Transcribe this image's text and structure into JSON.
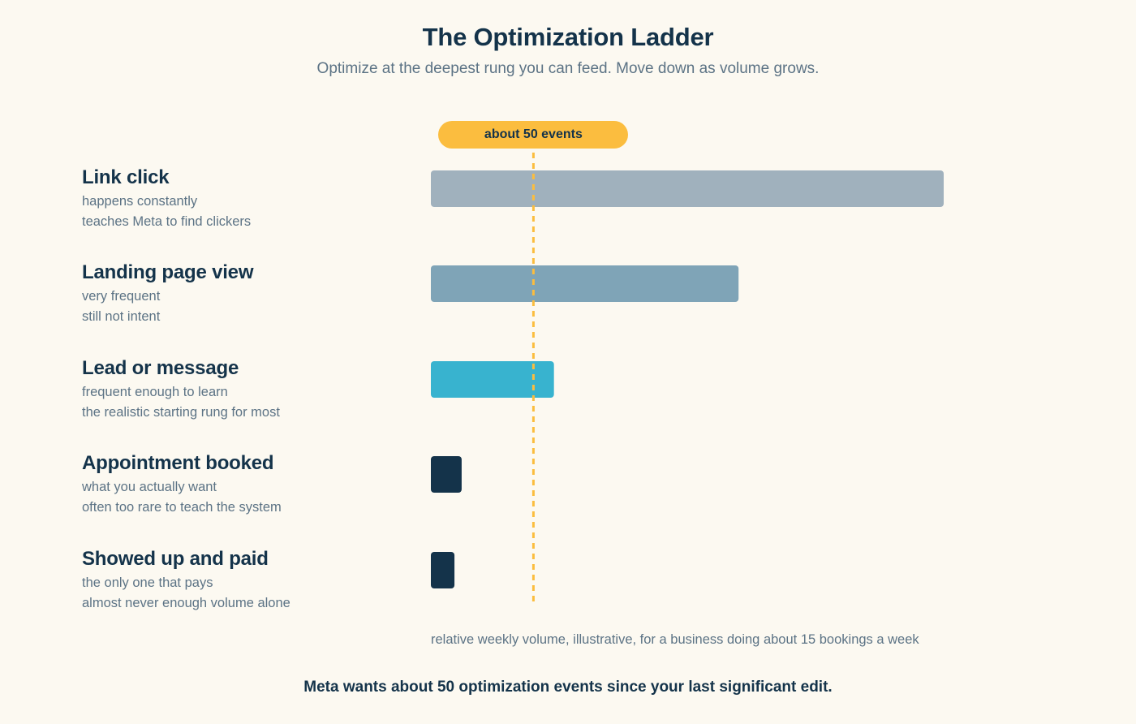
{
  "title": "The Optimization Ladder",
  "subtitle": "Optimize at the deepest rung you can feed. Move down as volume grows.",
  "threshold_label": "about 50 events",
  "caption": "relative weekly volume, illustrative, for a business doing about 15 bookings a week",
  "footer": "Meta wants about 50 optimization events since your last significant edit.",
  "chart_data": {
    "type": "bar",
    "orientation": "horizontal",
    "title": "The Optimization Ladder",
    "xlabel": "relative weekly volume, illustrative, for a business doing about 15 bookings a week",
    "threshold": {
      "value": 50,
      "label": "about 50 events",
      "color": "#fbbd3f"
    },
    "xlim": [
      0,
      250
    ],
    "categories": [
      "Link click",
      "Landing page view",
      "Lead or message",
      "Appointment booked",
      "Showed up and paid"
    ],
    "values": [
      250,
      150,
      60,
      15,
      11.5
    ],
    "colors": [
      "#a0b1bd",
      "#7fa4b7",
      "#38b3cf",
      "#14334a",
      "#14334a"
    ],
    "rungs": [
      {
        "name": "Link click",
        "lines": [
          "happens constantly",
          "teaches Meta to find clickers"
        ]
      },
      {
        "name": "Landing page view",
        "lines": [
          "very frequent",
          "still not intent"
        ]
      },
      {
        "name": "Lead or message",
        "lines": [
          "frequent enough to learn",
          "the realistic starting rung for most"
        ]
      },
      {
        "name": "Appointment booked",
        "lines": [
          "what you actually want",
          "often too rare to teach the system"
        ]
      },
      {
        "name": "Showed up and paid",
        "lines": [
          "the only one that pays",
          "almost never enough volume alone"
        ]
      }
    ]
  }
}
